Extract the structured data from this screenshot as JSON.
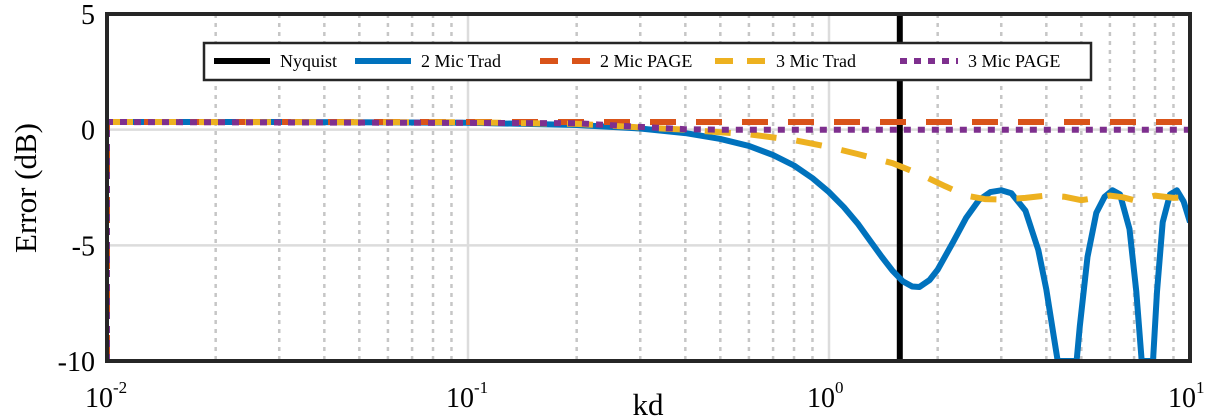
{
  "chart_data": {
    "type": "line",
    "xscale": "log",
    "xlim": [
      0.01,
      10
    ],
    "ylim": [
      -10,
      5
    ],
    "xlabel": "kd",
    "ylabel": "Error (dB)",
    "xticks": [
      {
        "base": "10",
        "exp": "-2",
        "value": 0.01
      },
      {
        "base": "10",
        "exp": "-1",
        "value": 0.1
      },
      {
        "base": "10",
        "exp": "0",
        "value": 1
      },
      {
        "base": "10",
        "exp": "1",
        "value": 10
      }
    ],
    "yticks": [
      {
        "label": "5",
        "value": 5
      },
      {
        "label": "0",
        "value": 0
      },
      {
        "label": "-5",
        "value": -5
      },
      {
        "label": "-10",
        "value": -10
      }
    ],
    "grid": true,
    "legend_position": "top",
    "legend": [
      "Nyquist",
      "2 Mic Trad",
      "2 Mic PAGE",
      "3 Mic Trad",
      "3 Mic PAGE"
    ],
    "series": [
      {
        "name": "Nyquist",
        "color": "#000000",
        "style": "solid",
        "width": 6,
        "points": [
          [
            1.571,
            -10
          ],
          [
            1.571,
            5
          ]
        ]
      },
      {
        "name": "2 Mic Trad",
        "color": "#0072BD",
        "style": "solid",
        "width": 6,
        "points": [
          [
            0.01,
            0.33
          ],
          [
            0.03,
            0.33
          ],
          [
            0.1,
            0.3
          ],
          [
            0.2,
            0.2
          ],
          [
            0.3,
            0.05
          ],
          [
            0.4,
            -0.15
          ],
          [
            0.5,
            -0.4
          ],
          [
            0.6,
            -0.7
          ],
          [
            0.7,
            -1.1
          ],
          [
            0.8,
            -1.55
          ],
          [
            0.9,
            -2.1
          ],
          [
            1.0,
            -2.7
          ],
          [
            1.1,
            -3.35
          ],
          [
            1.2,
            -4.05
          ],
          [
            1.3,
            -4.8
          ],
          [
            1.4,
            -5.5
          ],
          [
            1.5,
            -6.1
          ],
          [
            1.6,
            -6.55
          ],
          [
            1.7,
            -6.78
          ],
          [
            1.78,
            -6.8
          ],
          [
            1.9,
            -6.5
          ],
          [
            2.0,
            -6.05
          ],
          [
            2.2,
            -4.9
          ],
          [
            2.4,
            -3.8
          ],
          [
            2.6,
            -3.05
          ],
          [
            2.8,
            -2.7
          ],
          [
            3.0,
            -2.62
          ],
          [
            3.2,
            -2.75
          ],
          [
            3.5,
            -3.5
          ],
          [
            3.8,
            -5.2
          ],
          [
            4.0,
            -6.9
          ],
          [
            4.2,
            -9.0
          ],
          [
            4.3,
            -10
          ],
          [
            4.85,
            -10
          ],
          [
            4.95,
            -8.5
          ],
          [
            5.2,
            -5.5
          ],
          [
            5.5,
            -3.6
          ],
          [
            5.8,
            -2.9
          ],
          [
            6.1,
            -2.62
          ],
          [
            6.4,
            -2.8
          ],
          [
            6.8,
            -4.3
          ],
          [
            7.1,
            -7.0
          ],
          [
            7.35,
            -10
          ],
          [
            7.9,
            -10
          ],
          [
            8.1,
            -7.0
          ],
          [
            8.4,
            -4.0
          ],
          [
            8.8,
            -2.8
          ],
          [
            9.2,
            -2.62
          ],
          [
            9.6,
            -3.1
          ],
          [
            10,
            -4.0
          ]
        ]
      },
      {
        "name": "2 Mic PAGE",
        "color": "#D95319",
        "style": "dashed",
        "width": 6,
        "points": [
          [
            0.01,
            -10
          ],
          [
            0.01,
            0.33
          ],
          [
            10,
            0.33
          ]
        ]
      },
      {
        "name": "3 Mic Trad",
        "color": "#EDB120",
        "style": "dashed",
        "width": 6,
        "points": [
          [
            0.01,
            0.33
          ],
          [
            0.1,
            0.32
          ],
          [
            0.2,
            0.25
          ],
          [
            0.3,
            0.1
          ],
          [
            0.4,
            0.0
          ],
          [
            0.6,
            -0.2
          ],
          [
            0.8,
            -0.45
          ],
          [
            1.0,
            -0.75
          ],
          [
            1.2,
            -1.05
          ],
          [
            1.5,
            -1.45
          ],
          [
            1.8,
            -1.95
          ],
          [
            2.1,
            -2.45
          ],
          [
            2.4,
            -2.85
          ],
          [
            2.7,
            -3.0
          ],
          [
            3.0,
            -3.02
          ],
          [
            3.5,
            -2.95
          ],
          [
            4.0,
            -2.85
          ],
          [
            4.5,
            -2.9
          ],
          [
            5.0,
            -3.05
          ],
          [
            5.5,
            -2.95
          ],
          [
            6.0,
            -2.85
          ],
          [
            6.5,
            -2.92
          ],
          [
            7.0,
            -3.05
          ],
          [
            7.5,
            -2.97
          ],
          [
            8.0,
            -2.85
          ],
          [
            9.0,
            -2.95
          ],
          [
            10,
            -2.9
          ]
        ]
      },
      {
        "name": "3 Mic PAGE",
        "color": "#7E2F8E",
        "style": "dotted",
        "width": 6,
        "points": [
          [
            0.01,
            -10
          ],
          [
            0.01,
            0.33
          ],
          [
            0.2,
            0.28
          ],
          [
            0.3,
            0.12
          ],
          [
            0.4,
            0.02
          ],
          [
            0.5,
            0.0
          ],
          [
            10,
            0.0
          ]
        ]
      }
    ]
  }
}
